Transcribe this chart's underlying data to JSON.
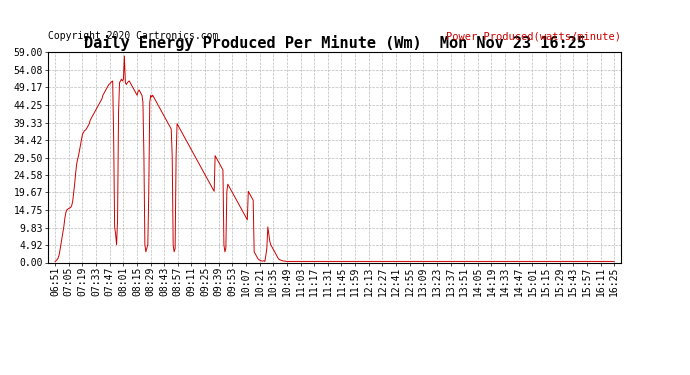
{
  "title": "Daily Energy Produced Per Minute (Wm)  Mon Nov 23 16:25",
  "copyright": "Copyright 2020 Cartronics.com",
  "legend_label": "Power Produced(watts/minute)",
  "ytick_values": [
    0.0,
    4.92,
    9.83,
    14.75,
    19.67,
    24.58,
    29.5,
    34.42,
    39.33,
    44.25,
    49.17,
    54.08,
    59.0
  ],
  "ymax": 59.0,
  "ymin": 0.0,
  "line_color": "#cc0000",
  "background_color": "#ffffff",
  "grid_color": "#bbbbbb",
  "title_fontsize": 11,
  "tick_label_fontsize": 7,
  "copyright_fontsize": 7,
  "legend_fontsize": 7.5,
  "x_tick_labels": [
    "06:51",
    "07:05",
    "07:19",
    "07:33",
    "07:47",
    "08:01",
    "08:15",
    "08:29",
    "08:43",
    "08:57",
    "09:11",
    "09:25",
    "09:39",
    "09:53",
    "10:07",
    "10:21",
    "10:35",
    "10:49",
    "11:03",
    "11:17",
    "11:31",
    "11:45",
    "11:59",
    "12:13",
    "12:27",
    "12:41",
    "12:55",
    "13:09",
    "13:23",
    "13:37",
    "13:51",
    "14:05",
    "14:19",
    "14:33",
    "14:47",
    "15:01",
    "15:15",
    "15:29",
    "15:43",
    "15:57",
    "16:11",
    "16:25"
  ],
  "series": [
    0.3,
    0.5,
    0.8,
    1.2,
    2.0,
    3.5,
    5.2,
    7.0,
    8.5,
    10.2,
    12.5,
    14.0,
    14.8,
    15.0,
    15.2,
    15.3,
    15.5,
    16.0,
    17.2,
    19.5,
    22.0,
    25.0,
    27.5,
    29.0,
    30.0,
    31.5,
    33.0,
    34.5,
    36.0,
    36.5,
    37.0,
    37.2,
    37.5,
    38.0,
    38.5,
    39.0,
    40.0,
    40.5,
    41.0,
    41.5,
    42.0,
    42.5,
    43.0,
    43.5,
    44.0,
    44.5,
    45.0,
    45.5,
    46.0,
    47.0,
    47.5,
    48.0,
    48.5,
    49.0,
    49.5,
    50.0,
    50.2,
    50.5,
    50.8,
    51.0,
    35.0,
    10.0,
    8.0,
    5.0,
    12.0,
    42.0,
    50.5,
    51.0,
    51.5,
    51.0,
    51.5,
    58.0,
    50.5,
    50.0,
    50.5,
    50.8,
    51.0,
    50.5,
    50.0,
    49.5,
    49.0,
    48.5,
    48.0,
    47.5,
    47.0,
    48.0,
    48.5,
    48.0,
    47.5,
    47.0,
    45.0,
    30.0,
    5.0,
    3.0,
    4.0,
    5.0,
    20.0,
    45.0,
    47.0,
    46.5,
    47.0,
    46.5,
    46.0,
    45.5,
    45.0,
    44.5,
    44.0,
    43.5,
    43.0,
    42.5,
    42.0,
    41.5,
    41.0,
    40.5,
    40.0,
    39.5,
    39.0,
    38.5,
    38.0,
    37.5,
    30.0,
    5.0,
    3.0,
    4.0,
    30.0,
    39.0,
    38.5,
    38.0,
    37.5,
    37.0,
    36.5,
    36.0,
    35.5,
    35.0,
    34.5,
    34.0,
    33.5,
    33.0,
    32.5,
    32.0,
    31.5,
    31.0,
    30.5,
    30.0,
    29.5,
    29.0,
    28.5,
    28.0,
    27.5,
    27.0,
    26.5,
    26.0,
    25.5,
    25.0,
    24.5,
    24.0,
    23.5,
    23.0,
    22.5,
    22.0,
    21.5,
    21.0,
    20.5,
    20.0,
    30.0,
    29.5,
    29.0,
    28.5,
    28.0,
    27.5,
    27.0,
    26.5,
    26.0,
    5.0,
    3.0,
    4.0,
    20.0,
    22.0,
    21.5,
    21.0,
    20.5,
    20.0,
    19.5,
    19.0,
    18.5,
    18.0,
    17.5,
    17.0,
    16.5,
    16.0,
    15.5,
    15.0,
    14.5,
    14.0,
    13.5,
    13.0,
    12.5,
    12.0,
    20.0,
    19.5,
    19.0,
    18.5,
    18.0,
    17.5,
    3.0,
    2.5,
    2.0,
    1.5,
    1.0,
    0.8,
    0.6,
    0.5,
    0.4,
    0.4,
    0.5,
    0.3,
    2.0,
    4.0,
    10.0,
    8.0,
    6.0,
    5.0,
    4.5,
    4.0,
    3.5,
    3.0,
    2.5,
    2.0,
    1.5,
    1.0,
    0.8,
    0.7,
    0.6,
    0.5,
    0.4,
    0.4,
    0.4,
    0.3,
    0.3,
    0.3,
    0.3,
    0.3,
    0.3,
    0.3,
    0.3,
    0.3,
    0.3,
    0.3,
    0.3,
    0.3,
    0.3,
    0.3,
    0.3,
    0.3,
    0.3,
    0.3,
    0.3,
    0.3,
    0.3,
    0.3,
    0.3,
    0.3,
    0.3,
    0.3,
    0.3,
    0.3,
    0.3,
    0.3,
    0.3,
    0.3,
    0.3,
    0.3,
    0.3,
    0.3,
    0.3,
    0.3,
    0.3,
    0.3,
    0.3,
    0.3,
    0.3,
    0.3,
    0.3,
    0.3,
    0.3,
    0.3,
    0.3,
    0.3,
    0.3,
    0.3,
    0.3,
    0.3,
    0.3,
    0.3,
    0.3,
    0.3,
    0.3,
    0.3,
    0.3,
    0.3,
    0.3,
    0.3,
    0.3,
    0.3,
    0.3,
    0.3,
    0.3,
    0.3,
    0.3,
    0.3,
    0.3,
    0.3,
    0.3,
    0.3,
    0.3,
    0.3,
    0.3,
    0.3,
    0.3,
    0.3,
    0.3,
    0.3,
    0.3,
    0.3,
    0.3,
    0.3,
    0.3,
    0.3,
    0.3,
    0.3,
    0.3,
    0.3,
    0.3,
    0.3,
    0.3,
    0.3,
    0.3,
    0.3,
    0.3,
    0.3,
    0.3,
    0.3,
    0.3,
    0.3,
    0.3,
    0.3,
    0.3,
    0.3,
    0.3,
    0.3,
    0.3,
    0.3,
    0.3,
    0.3,
    0.3,
    0.3,
    0.3,
    0.3,
    0.3,
    0.3,
    0.3,
    0.3,
    0.3,
    0.3,
    0.3,
    0.3,
    0.3,
    0.3,
    0.3,
    0.3,
    0.3,
    0.3,
    0.3,
    0.3,
    0.3,
    0.3,
    0.3,
    0.3,
    0.3,
    0.3,
    0.3,
    0.3,
    0.3,
    0.3,
    0.3,
    0.3,
    0.3,
    0.3,
    0.3,
    0.3,
    0.3,
    0.3,
    0.3,
    0.3,
    0.3,
    0.3,
    0.3,
    0.3,
    0.3,
    0.3,
    0.3,
    0.3,
    0.3,
    0.3,
    0.3,
    0.3,
    0.3,
    0.3,
    0.3,
    0.3,
    0.3,
    0.3,
    0.3,
    0.3,
    0.3,
    0.3,
    0.3,
    0.3,
    0.3,
    0.3,
    0.3,
    0.3,
    0.3,
    0.3,
    0.3,
    0.3,
    0.3,
    0.3,
    0.3,
    0.3,
    0.3,
    0.3,
    0.3,
    0.3,
    0.3,
    0.3,
    0.3,
    0.3,
    0.3,
    0.3,
    0.3,
    0.3,
    0.3,
    0.3,
    0.3,
    0.3,
    0.3,
    0.3,
    0.3,
    0.3,
    0.3,
    0.3,
    0.3,
    0.3,
    0.3,
    0.3,
    0.3,
    0.3,
    0.3,
    0.3,
    0.3,
    0.3,
    0.3,
    0.3,
    0.3,
    0.3,
    0.3,
    0.3,
    0.3,
    0.3,
    0.3,
    0.3,
    0.3,
    0.3,
    0.3,
    0.3,
    0.3,
    0.3,
    0.3,
    0.3,
    0.3,
    0.3,
    0.3,
    0.3,
    0.3,
    0.3,
    0.3,
    0.3,
    0.3,
    0.3,
    0.3,
    0.3,
    0.3,
    0.3,
    0.3,
    0.3,
    0.3,
    0.3,
    0.3,
    0.3,
    0.3,
    0.3,
    0.3,
    0.3,
    0.3,
    0.3,
    0.3,
    0.3,
    0.3,
    0.3,
    0.3,
    0.3,
    0.3,
    0.3,
    0.3,
    0.3,
    0.3,
    0.3,
    0.3,
    0.3,
    0.3,
    0.3,
    0.3,
    0.3,
    0.3,
    0.3,
    0.3,
    0.3,
    0.3,
    0.3,
    0.3,
    0.3,
    0.3,
    0.3,
    0.3,
    0.3,
    0.3,
    0.3,
    0.3,
    0.3,
    0.3,
    0.3,
    0.3,
    0.3,
    0.3,
    0.3,
    0.3,
    0.3,
    0.3,
    0.3,
    0.3,
    0.3,
    0.3,
    0.3,
    0.3,
    0.3,
    0.3,
    0.3,
    0.3,
    0.3,
    0.3,
    0.3,
    0.3,
    0.3,
    0.3,
    0.3,
    0.3,
    0.3,
    0.3,
    0.3,
    0.3,
    0.3,
    0.3,
    0.3
  ]
}
